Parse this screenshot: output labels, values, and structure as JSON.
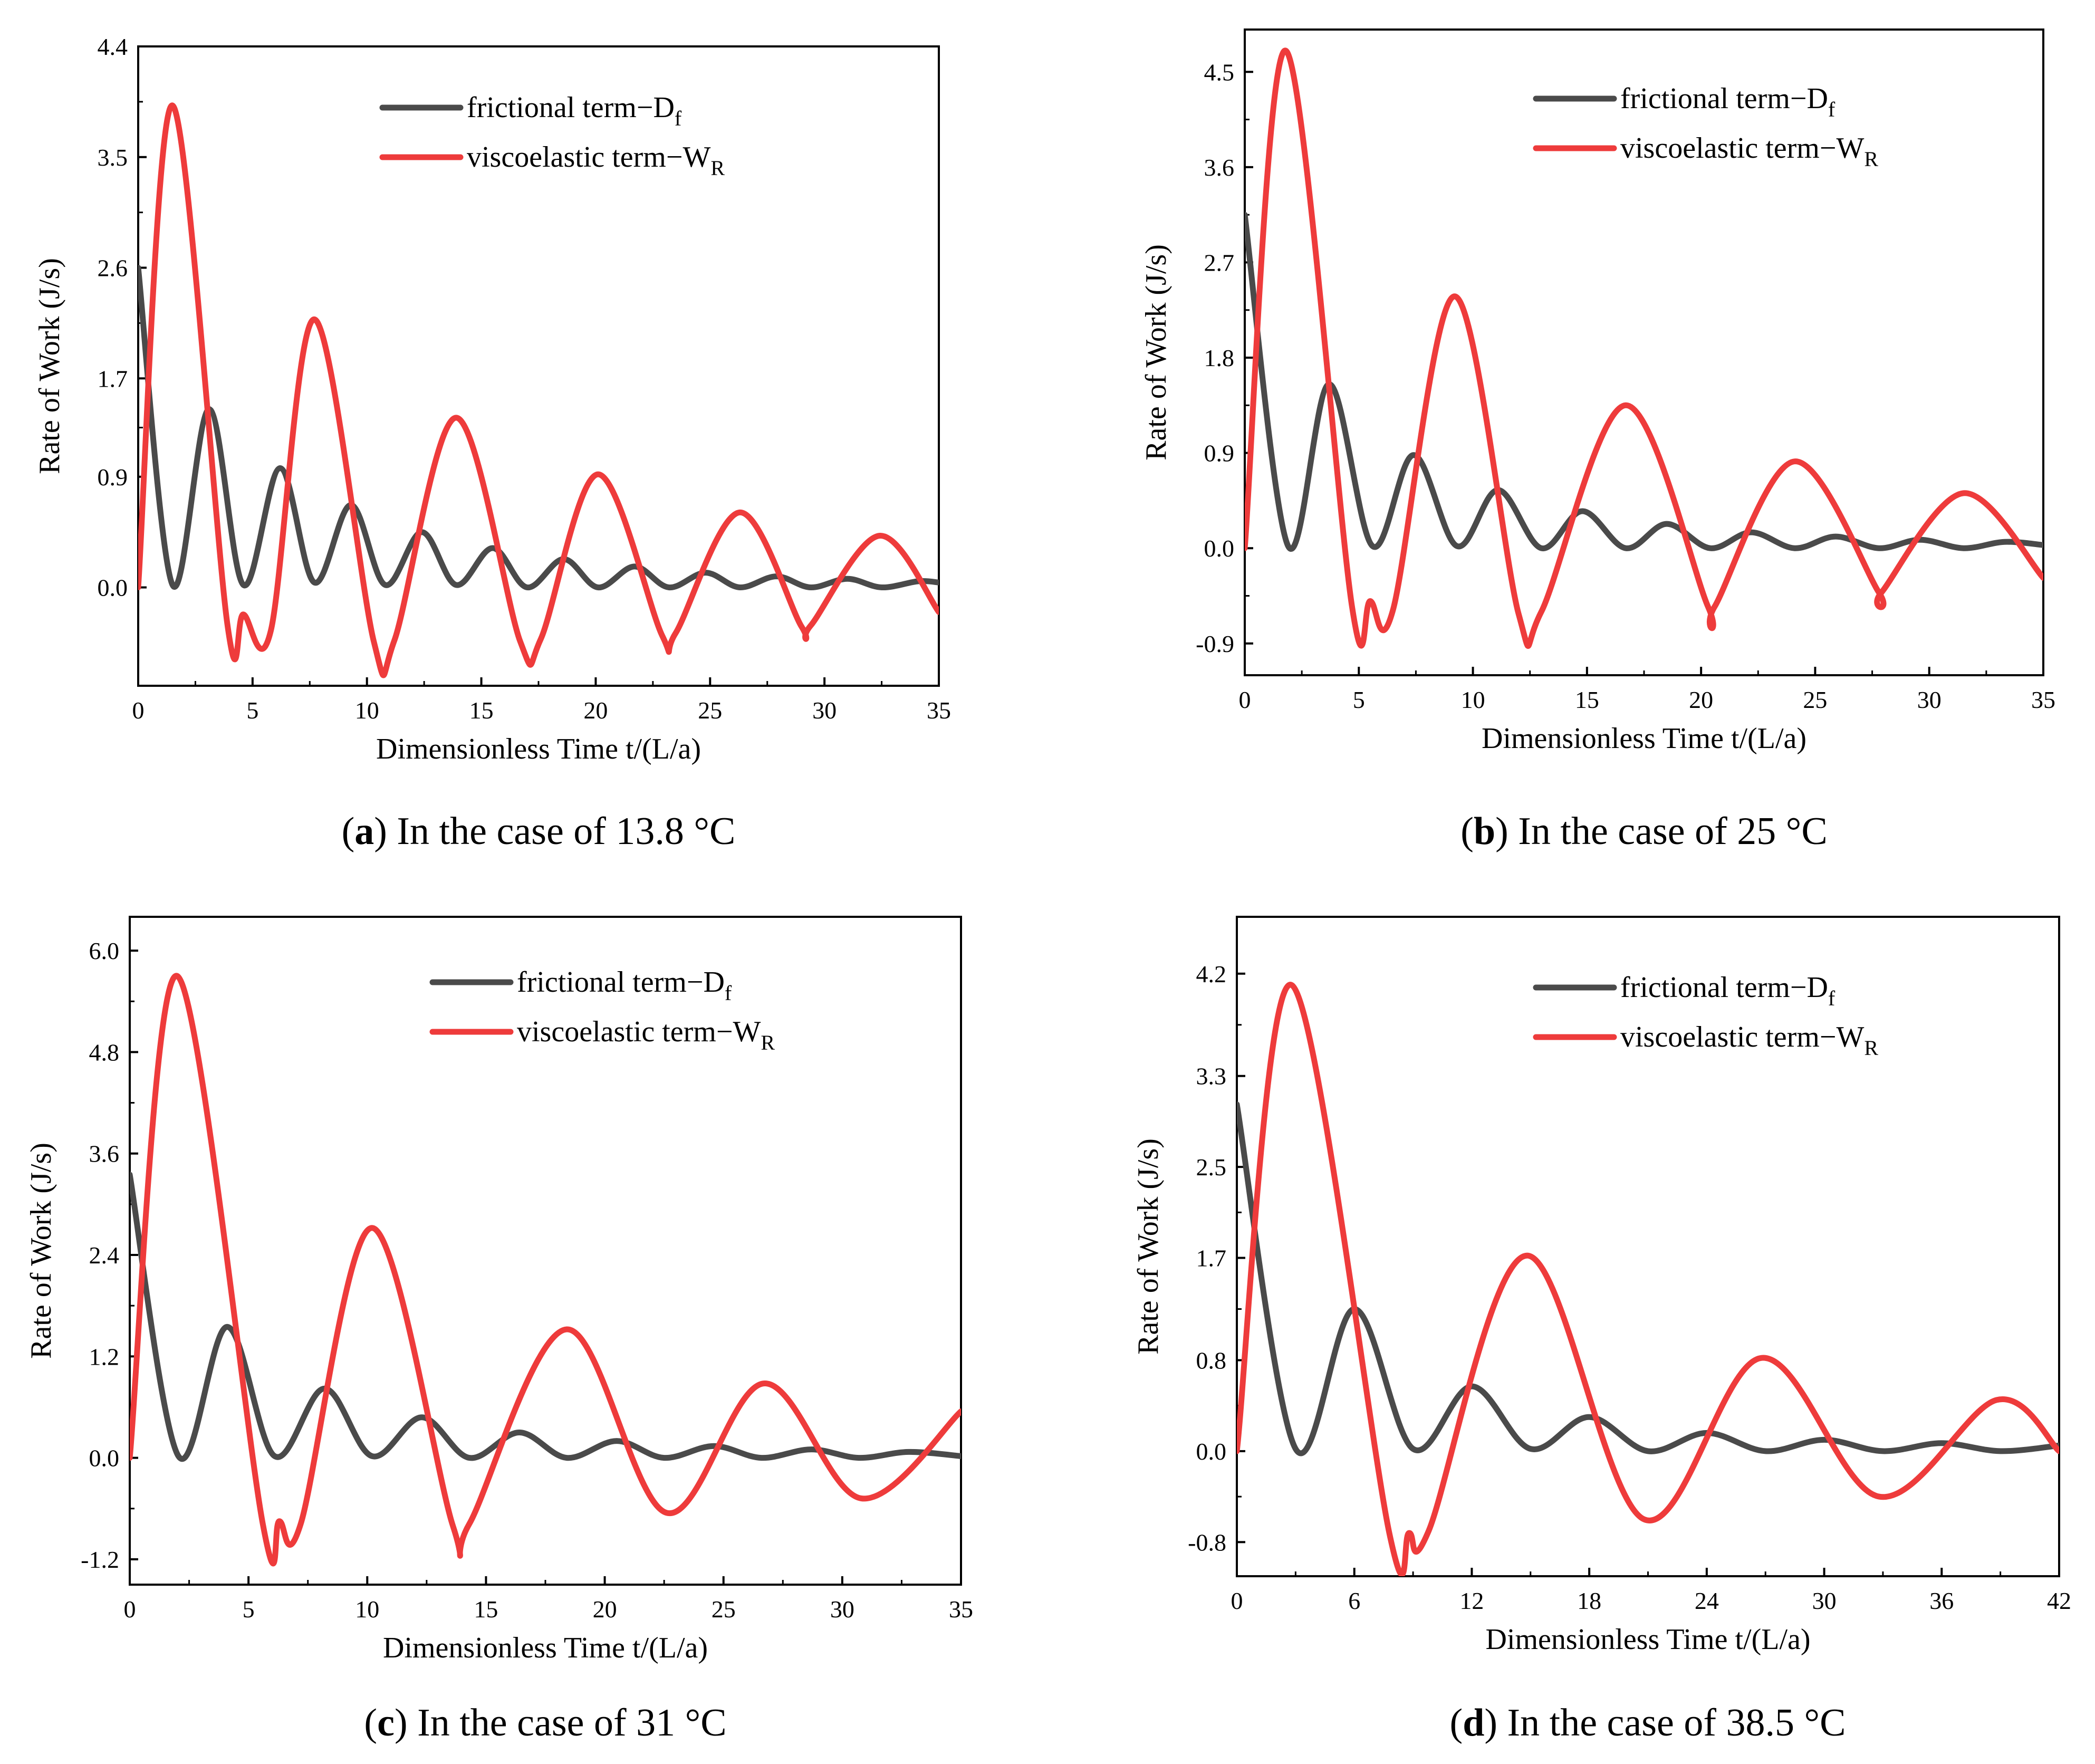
{
  "colors": {
    "frictional": "#4a4a4a",
    "viscoelastic": "#ee3b3b",
    "axis": "#000000"
  },
  "chart_data": [
    {
      "type": "line",
      "panel": "a",
      "caption_letter": "a",
      "caption_text": ") In the case of 13.8 °C",
      "xlabel": "Dimensionless Time  t/(L/a)",
      "ylabel": "Rate of Work (J/s)",
      "xlim": [
        0,
        35
      ],
      "ylim": [
        -0.8,
        4.4
      ],
      "xticks": [
        "0",
        "5",
        "10",
        "15",
        "20",
        "25",
        "30",
        "35"
      ],
      "yticks": [
        "0.0",
        "0.9",
        "1.7",
        "2.6",
        "3.5",
        "4.4"
      ],
      "legend": [
        {
          "series": "frictional",
          "main": "frictional term−D",
          "sub": "f"
        },
        {
          "series": "viscoelastic",
          "main": "viscoelastic term−W",
          "sub": "R"
        }
      ],
      "legend_position": "top-right",
      "series": [
        {
          "name": "frictional",
          "x": [
            0,
            1.5,
            3.1,
            4.6,
            6.2,
            7.7,
            9.3,
            10.8,
            12.4,
            13.9,
            15.5,
            17.0,
            18.6,
            20.1,
            21.7,
            23.2,
            24.8,
            26.3,
            27.9,
            29.4,
            31.0,
            32.5,
            34.1,
            35
          ],
          "y": [
            2.6,
            0.02,
            1.45,
            0.02,
            0.97,
            0.04,
            0.67,
            0.02,
            0.45,
            0.02,
            0.32,
            0.0,
            0.23,
            0.0,
            0.17,
            0.0,
            0.12,
            0.0,
            0.09,
            0.0,
            0.07,
            0.0,
            0.05,
            0.04
          ]
        },
        {
          "name": "viscoelastic",
          "x": [
            0,
            1.5,
            3.9,
            4.6,
            5.8,
            7.7,
            10.3,
            11.2,
            13.9,
            16.7,
            17.6,
            20.1,
            22.9,
            23.5,
            26.3,
            29.0,
            29.4,
            32.4,
            35
          ],
          "y": [
            0.0,
            3.92,
            -0.3,
            -0.22,
            -0.35,
            2.18,
            -0.44,
            -0.43,
            1.38,
            -0.44,
            -0.42,
            0.92,
            -0.39,
            -0.37,
            0.61,
            -0.32,
            -0.31,
            0.42,
            -0.2
          ]
        }
      ]
    },
    {
      "type": "line",
      "panel": "b",
      "caption_letter": "b",
      "caption_text": ") In the case of 25 °C",
      "xlabel": "Dimensionless Time  t/(L/a)",
      "ylabel": "Rate of Work (J/s)",
      "xlim": [
        0,
        35
      ],
      "ylim": [
        -1.2,
        4.9
      ],
      "xticks": [
        "0",
        "5",
        "10",
        "15",
        "20",
        "25",
        "30",
        "35"
      ],
      "yticks": [
        "-0.9",
        "0.0",
        "0.9",
        "1.8",
        "2.7",
        "3.6",
        "4.5"
      ],
      "legend": [
        {
          "series": "frictional",
          "main": "frictional term−D",
          "sub": "f"
        },
        {
          "series": "viscoelastic",
          "main": "viscoelastic term−W",
          "sub": "R"
        }
      ],
      "legend_position": "top-right",
      "series": [
        {
          "name": "frictional",
          "x": [
            0,
            1.9,
            3.7,
            5.6,
            7.4,
            9.3,
            11.1,
            13.0,
            14.8,
            16.7,
            18.5,
            20.4,
            22.2,
            24.1,
            25.9,
            27.8,
            29.6,
            31.5,
            33.3,
            35
          ],
          "y": [
            3.15,
            0.02,
            1.55,
            0.02,
            0.88,
            0.02,
            0.55,
            0.0,
            0.35,
            0.0,
            0.23,
            0.0,
            0.15,
            0.0,
            0.11,
            0.0,
            0.08,
            0.0,
            0.06,
            0.03
          ]
        },
        {
          "name": "viscoelastic",
          "x": [
            0,
            1.8,
            4.7,
            5.5,
            6.5,
            9.2,
            12.0,
            13.0,
            16.7,
            20.3,
            20.6,
            24.1,
            27.8,
            27.9,
            31.5,
            35
          ],
          "y": [
            0.0,
            4.7,
            -0.55,
            -0.5,
            -0.58,
            2.38,
            -0.62,
            -0.6,
            1.35,
            -0.55,
            -0.55,
            0.82,
            -0.42,
            -0.42,
            0.52,
            -0.28
          ]
        }
      ]
    },
    {
      "type": "line",
      "panel": "c",
      "caption_letter": "c",
      "caption_text": ") In the case of 31 °C",
      "xlabel": "Dimensionless Time  t/(L/a)",
      "ylabel": "Rate of Work (J/s)",
      "xlim": [
        0,
        35
      ],
      "ylim": [
        -1.5,
        6.4
      ],
      "xticks": [
        "0",
        "5",
        "10",
        "15",
        "20",
        "25",
        "30",
        "35"
      ],
      "yticks": [
        "-1.2",
        "0.0",
        "1.2",
        "2.4",
        "3.6",
        "4.8",
        "6.0"
      ],
      "legend": [
        {
          "series": "frictional",
          "main": "frictional term−D",
          "sub": "f"
        },
        {
          "series": "viscoelastic",
          "main": "viscoelastic term−W",
          "sub": "R"
        }
      ],
      "legend_position": "top-right",
      "series": [
        {
          "name": "frictional",
          "x": [
            0,
            2.05,
            4.1,
            6.1,
            8.2,
            10.2,
            12.3,
            14.3,
            16.4,
            18.4,
            20.5,
            22.5,
            24.6,
            26.6,
            28.7,
            30.7,
            32.8,
            35
          ],
          "y": [
            3.35,
            0.02,
            1.55,
            0.02,
            0.82,
            0.02,
            0.48,
            0.0,
            0.3,
            0.0,
            0.2,
            0.0,
            0.14,
            0.0,
            0.1,
            0.0,
            0.07,
            0.02
          ]
        },
        {
          "name": "viscoelastic",
          "x": [
            0,
            2.0,
            5.6,
            6.3,
            7.2,
            10.2,
            13.6,
            14.3,
            18.4,
            22.6,
            26.7,
            30.8,
            35
          ],
          "y": [
            0.0,
            5.7,
            -0.78,
            -0.75,
            -0.78,
            2.72,
            -0.8,
            -0.78,
            1.52,
            -0.65,
            0.88,
            -0.48,
            0.55
          ]
        }
      ]
    },
    {
      "type": "line",
      "panel": "d",
      "caption_letter": "d",
      "caption_text": ") In the case of 38.5 °C",
      "xlabel": "Dimensionless Time  t/(L/a)",
      "ylabel": "Rate of Work (J/s)",
      "xlim": [
        0,
        42
      ],
      "ylim": [
        -1.1,
        4.7
      ],
      "xticks": [
        "0",
        "6",
        "12",
        "18",
        "24",
        "30",
        "36",
        "42"
      ],
      "yticks": [
        "-0.8",
        "0.0",
        "0.8",
        "1.7",
        "2.5",
        "3.3",
        "4.2"
      ],
      "legend": [
        {
          "series": "frictional",
          "main": "frictional term−D",
          "sub": "f"
        },
        {
          "series": "viscoelastic",
          "main": "viscoelastic term−W",
          "sub": "R"
        }
      ],
      "legend_position": "top-right",
      "series": [
        {
          "name": "frictional",
          "x": [
            0,
            3.0,
            6.0,
            9.0,
            12.0,
            15.0,
            18.0,
            21.0,
            24.0,
            27.0,
            30.0,
            33.0,
            36.0,
            39.0,
            42
          ],
          "y": [
            3.05,
            0.02,
            1.25,
            0.02,
            0.57,
            0.02,
            0.3,
            0.0,
            0.16,
            0.0,
            0.1,
            0.0,
            0.07,
            0.0,
            0.05
          ]
        },
        {
          "name": "viscoelastic",
          "x": [
            0,
            2.8,
            7.8,
            8.8,
            9.8,
            14.8,
            20.8,
            26.8,
            32.8,
            38.8,
            42
          ],
          "y": [
            0.0,
            4.1,
            -0.73,
            -0.72,
            -0.7,
            1.72,
            -0.6,
            0.82,
            -0.4,
            0.45,
            0.0
          ]
        }
      ]
    }
  ]
}
